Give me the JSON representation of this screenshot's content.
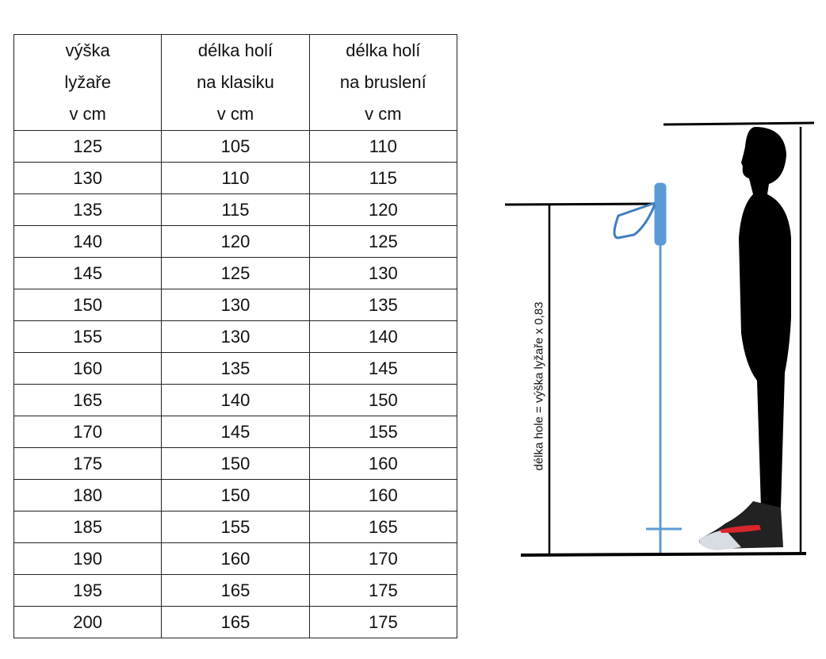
{
  "table": {
    "headers": [
      [
        "výška",
        "lyžaře",
        "v cm"
      ],
      [
        "délka holí",
        "na klasiku",
        "v cm"
      ],
      [
        "délka holí",
        "na  bruslení",
        "v cm"
      ]
    ],
    "rows": [
      [
        "125",
        "105",
        "110"
      ],
      [
        "130",
        "110",
        "115"
      ],
      [
        "135",
        "115",
        "120"
      ],
      [
        "140",
        "120",
        "125"
      ],
      [
        "145",
        "125",
        "130"
      ],
      [
        "150",
        "130",
        "135"
      ],
      [
        "155",
        "130",
        "140"
      ],
      [
        "160",
        "135",
        "145"
      ],
      [
        "165",
        "140",
        "150"
      ],
      [
        "170",
        "145",
        "155"
      ],
      [
        "175",
        "150",
        "160"
      ],
      [
        "180",
        "150",
        "160"
      ],
      [
        "185",
        "155",
        "165"
      ],
      [
        "190",
        "160",
        "170"
      ],
      [
        "195",
        "165",
        "175"
      ],
      [
        "200",
        "165",
        "175"
      ]
    ]
  },
  "illustration": {
    "formula_label": "délka hole = výška lyžaře x 0,83",
    "pole_color": "#5b9bd5",
    "silhouette_color": "#000000",
    "boot_accent_color": "#d9262c"
  }
}
